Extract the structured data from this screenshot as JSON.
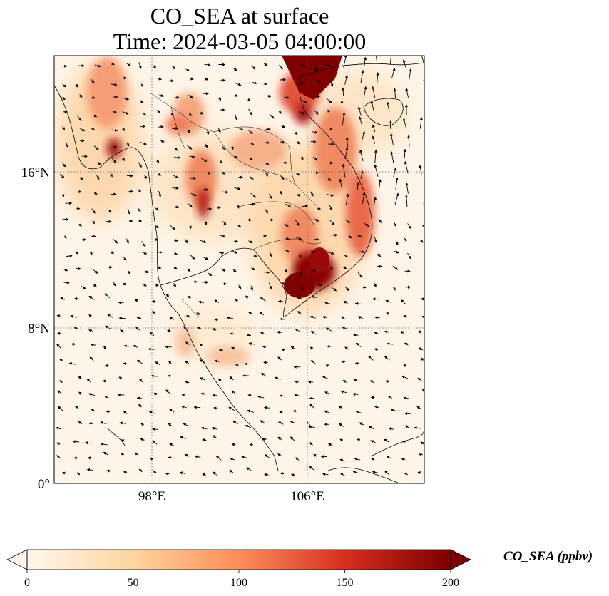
{
  "figure": {
    "title_line1": "CO_SEA at surface",
    "title_line2": "Time: 2024-03-05 04:00:00"
  },
  "map": {
    "lat_ticks": [
      "16°N",
      "8°N",
      "0°"
    ],
    "lon_ticks": [
      "98°E",
      "106°E"
    ],
    "gridlines": "dotted"
  },
  "colorbar": {
    "label": "CO_SEA (ppbv)",
    "ticks": [
      "0",
      "50",
      "100",
      "150",
      "200"
    ],
    "range": [
      0,
      200
    ],
    "extend": "both",
    "colormap": "OrRd",
    "colors": [
      "#fff7ec",
      "#fdd49e",
      "#fc8d59",
      "#d7301f",
      "#7f0000"
    ]
  },
  "chart_data": {
    "type": "heatmap",
    "variable": "CO_SEA",
    "units": "ppbv",
    "level": "surface",
    "time": "2024-03-05 04:00:00",
    "lon_range": [
      93,
      112
    ],
    "lat_range": [
      0,
      22
    ],
    "value_range": [
      0,
      200
    ],
    "hotspots": [
      {
        "lon": 107,
        "lat": 21.5,
        "value": 200
      },
      {
        "lon": 106.5,
        "lat": 20.5,
        "value": 190
      },
      {
        "lon": 106,
        "lat": 10.2,
        "value": 200
      },
      {
        "lon": 106.6,
        "lat": 11,
        "value": 170
      },
      {
        "lon": 96.2,
        "lat": 17.3,
        "value": 180
      },
      {
        "lon": 101.6,
        "lat": 14.2,
        "value": 170
      },
      {
        "lon": 95.5,
        "lat": 20.5,
        "value": 110
      },
      {
        "lon": 101.2,
        "lat": 18.5,
        "value": 90
      },
      {
        "lon": 108.8,
        "lat": 14.5,
        "value": 140
      },
      {
        "lon": 103.5,
        "lat": 17,
        "value": 90
      },
      {
        "lon": 104.5,
        "lat": 12.8,
        "value": 100
      },
      {
        "lon": 102.5,
        "lat": 6.5,
        "value": 60
      }
    ]
  }
}
